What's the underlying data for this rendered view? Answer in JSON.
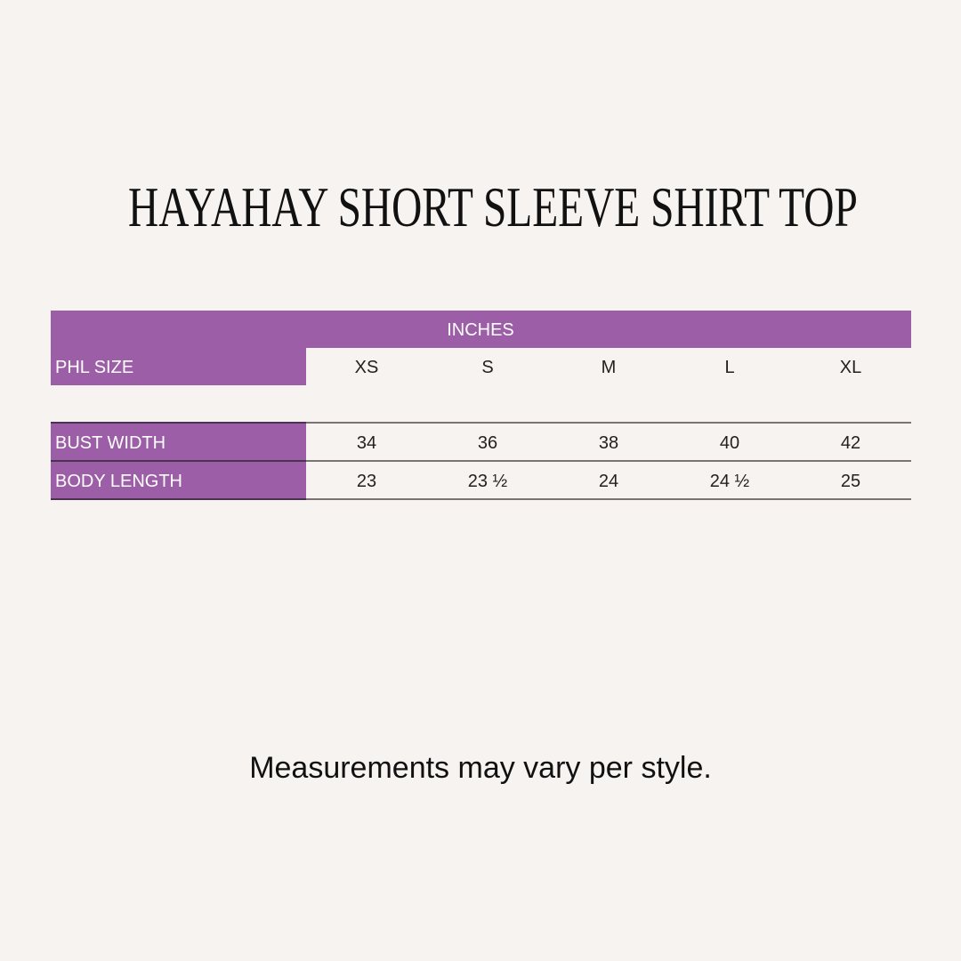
{
  "title": "HAYAHAY SHORT SLEEVE SHIRT TOP",
  "table": {
    "units": "INCHES",
    "size_label": "PHL SIZE",
    "sizes": [
      "XS",
      "S",
      "M",
      "L",
      "XL"
    ],
    "rows": [
      {
        "label": "BUST WIDTH",
        "values": [
          "34",
          "36",
          "38",
          "40",
          "42"
        ]
      },
      {
        "label": "BODY LENGTH",
        "values": [
          "23",
          "23 ½",
          "24",
          "24 ½",
          "25"
        ]
      }
    ]
  },
  "note": "Measurements may vary per style.",
  "colors": {
    "accent": "#9c5ea6",
    "background": "#f7f3f0"
  }
}
